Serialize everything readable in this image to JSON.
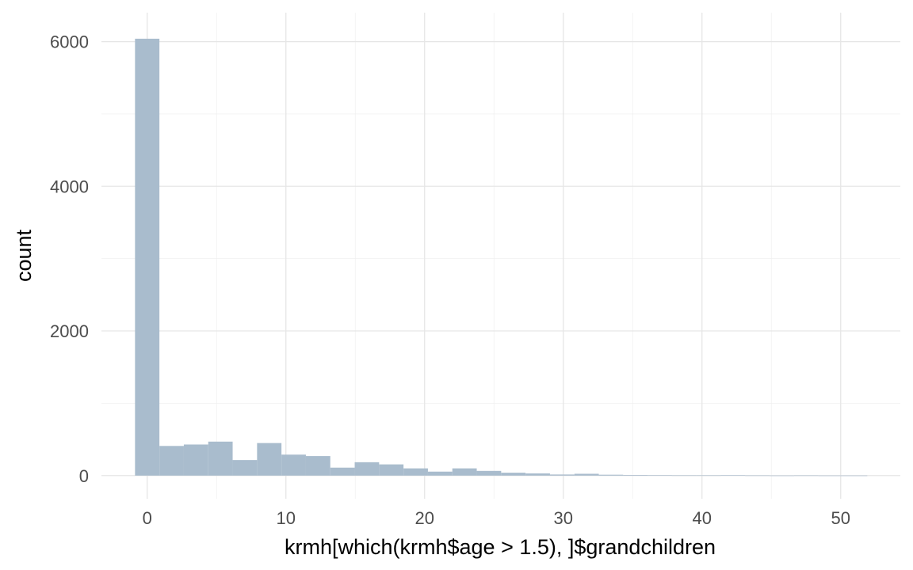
{
  "chart_data": {
    "type": "bar",
    "subtype": "histogram",
    "xlabel": "krmh[which(krmh$age > 1.5), ]$grandchildren",
    "ylabel": "count",
    "xlim": [
      -3.3,
      54.3
    ],
    "ylim": [
      -320,
      6400
    ],
    "x_ticks": [
      0,
      10,
      20,
      30,
      40,
      50
    ],
    "y_ticks": [
      0,
      2000,
      4000,
      6000
    ],
    "grid": true,
    "bar_color": "#a9bccd",
    "bins": [
      {
        "x0": -0.88,
        "x1": 0.88,
        "count": 6040
      },
      {
        "x0": 0.88,
        "x1": 2.64,
        "count": 410
      },
      {
        "x0": 2.64,
        "x1": 4.4,
        "count": 430
      },
      {
        "x0": 4.4,
        "x1": 6.16,
        "count": 470
      },
      {
        "x0": 6.16,
        "x1": 7.92,
        "count": 215
      },
      {
        "x0": 7.92,
        "x1": 9.68,
        "count": 450
      },
      {
        "x0": 9.68,
        "x1": 11.44,
        "count": 290
      },
      {
        "x0": 11.44,
        "x1": 13.2,
        "count": 270
      },
      {
        "x0": 13.2,
        "x1": 14.96,
        "count": 110
      },
      {
        "x0": 14.96,
        "x1": 16.72,
        "count": 185
      },
      {
        "x0": 16.72,
        "x1": 18.48,
        "count": 155
      },
      {
        "x0": 18.48,
        "x1": 20.24,
        "count": 100
      },
      {
        "x0": 20.24,
        "x1": 22.0,
        "count": 55
      },
      {
        "x0": 22.0,
        "x1": 23.76,
        "count": 100
      },
      {
        "x0": 23.76,
        "x1": 25.52,
        "count": 65
      },
      {
        "x0": 25.52,
        "x1": 27.28,
        "count": 40
      },
      {
        "x0": 27.28,
        "x1": 29.04,
        "count": 30
      },
      {
        "x0": 29.04,
        "x1": 30.8,
        "count": 15
      },
      {
        "x0": 30.8,
        "x1": 32.56,
        "count": 25
      },
      {
        "x0": 32.56,
        "x1": 34.32,
        "count": 12
      },
      {
        "x0": 34.32,
        "x1": 36.08,
        "count": 8
      },
      {
        "x0": 36.08,
        "x1": 37.84,
        "count": 5
      },
      {
        "x0": 37.84,
        "x1": 39.6,
        "count": 3
      },
      {
        "x0": 39.6,
        "x1": 41.36,
        "count": 3
      },
      {
        "x0": 41.36,
        "x1": 43.12,
        "count": 4
      },
      {
        "x0": 43.12,
        "x1": 44.88,
        "count": 2
      },
      {
        "x0": 44.88,
        "x1": 46.64,
        "count": 1
      },
      {
        "x0": 46.64,
        "x1": 48.4,
        "count": 2
      },
      {
        "x0": 48.4,
        "x1": 50.16,
        "count": 1
      },
      {
        "x0": 50.16,
        "x1": 51.92,
        "count": 1
      }
    ]
  }
}
